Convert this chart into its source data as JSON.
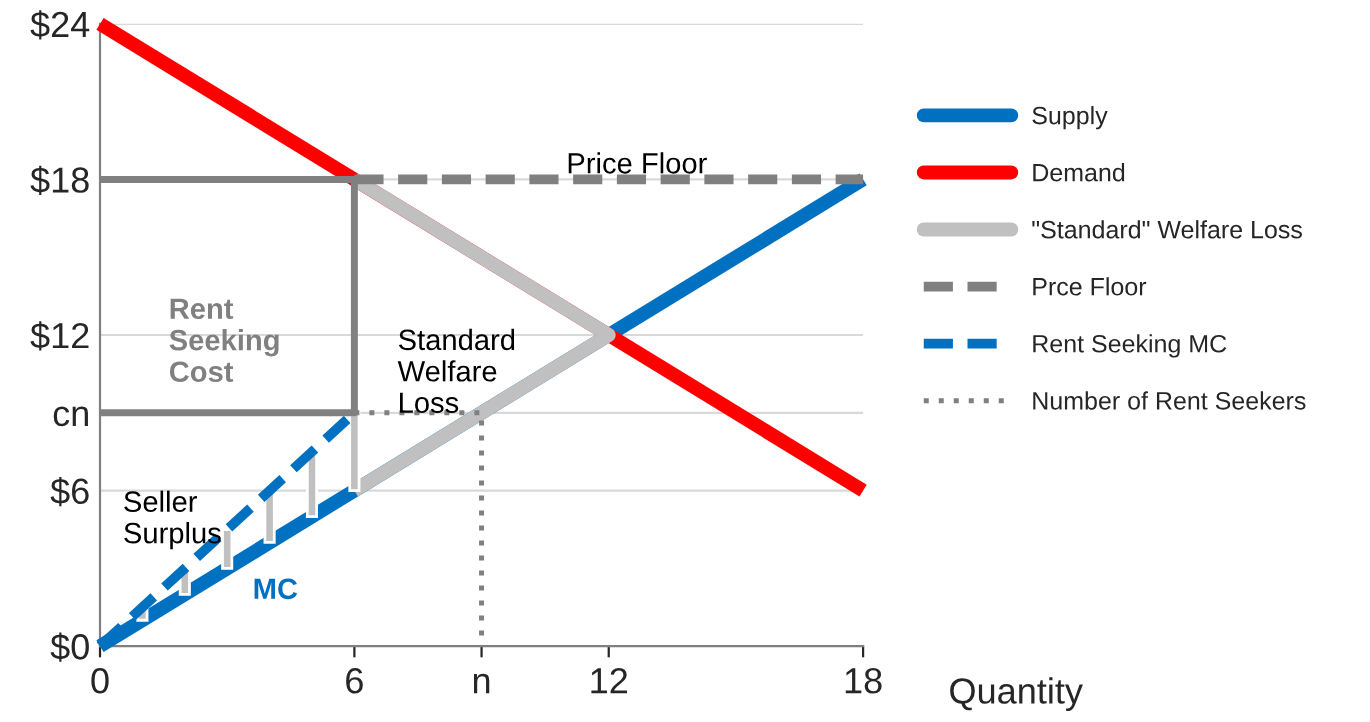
{
  "chart_data": {
    "type": "line",
    "xlabel": "Quantity",
    "xlim": [
      0,
      18
    ],
    "xticks": [
      0,
      6,
      {
        "value": 9,
        "label": "n"
      },
      12,
      18
    ],
    "ylim": [
      0,
      24
    ],
    "yticks": [
      {
        "value": 0,
        "label": "$0"
      },
      {
        "value": 6,
        "label": "$6"
      },
      {
        "value": 9,
        "label": "cn"
      },
      {
        "value": 12,
        "label": "$12"
      },
      {
        "value": 18,
        "label": "$18"
      },
      {
        "value": 24,
        "label": "$24"
      }
    ],
    "grid": "y",
    "legend": "right",
    "series": [
      {
        "name": "Supply",
        "color": "#0070c0",
        "x": [
          0,
          18
        ],
        "values": [
          0,
          18
        ]
      },
      {
        "name": "Demand",
        "color": "#ff0000",
        "x": [
          0,
          18
        ],
        "values": [
          24,
          6
        ]
      },
      {
        "name": "\"Standard\" Welfare Loss",
        "color": "#c0c0c0",
        "x": [
          6,
          12,
          6
        ],
        "values": [
          18,
          12,
          6
        ]
      },
      {
        "name": "Prce Floor",
        "color": "#808080",
        "x": [
          6,
          18
        ],
        "values": [
          18,
          18
        ],
        "line_style": "dashed"
      },
      {
        "name": "Rent Seeking MC",
        "color": "#0070c0",
        "x": [
          0,
          6
        ],
        "values": [
          0,
          9
        ],
        "line_style": "dashed"
      },
      {
        "name": "Number of Rent Seekers",
        "color": "#808080",
        "x": [
          6,
          9,
          9
        ],
        "values": [
          9,
          9,
          0
        ],
        "line_style": "dotted"
      },
      {
        "color": "#808080",
        "x": [
          0,
          6,
          6,
          0
        ],
        "values": [
          9,
          9,
          18,
          18
        ]
      },
      {
        "type": "bar",
        "color": "#c0c0c0",
        "x": [
          1,
          2,
          3,
          4,
          5,
          6
        ],
        "base": [
          1,
          2,
          3,
          4,
          5,
          6
        ],
        "values": [
          0.5,
          1,
          1.5,
          2,
          2.5,
          3
        ]
      }
    ],
    "annotations": [
      {
        "text": "Price Floor",
        "x": 11,
        "y": 18
      },
      "Rent Seeking Cost",
      "Standard Welfare Loss",
      "Seller Surplus",
      "MC"
    ]
  }
}
